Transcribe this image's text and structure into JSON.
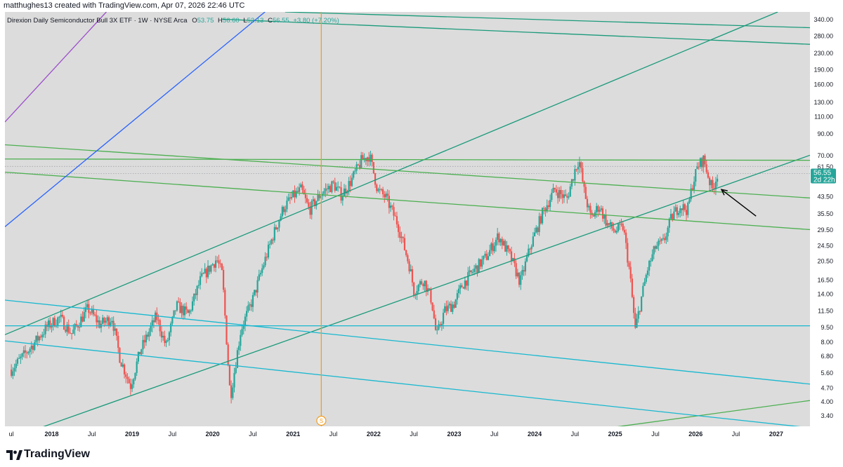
{
  "header": {
    "credit": "matthughes13 created with TradingView.com, Apr 07, 2026 22:46 UTC"
  },
  "symbol": {
    "name": "Direxion Daily Semiconductor Bull 3X ETF · 1W · NYSE Arca",
    "open_label": "O",
    "open": "53.75",
    "high_label": "H",
    "high": "56.60",
    "low_label": "L",
    "low": "52.13",
    "close_label": "C",
    "close": "56.55",
    "change": "+3.80 (+7.20%)"
  },
  "price_tag": {
    "price": "56.55",
    "countdown": "2d 22h"
  },
  "event_marker": "S",
  "footer": {
    "brand": "TradingView"
  },
  "colors": {
    "background": "#dcdcdc",
    "up": "#26a69a",
    "down": "#ef5350",
    "teal_line": "#199a7a",
    "green_line": "#4caf50",
    "cyan_line": "#17b8d0",
    "blue_line": "#2962ff",
    "purple_line": "#9c4dcc",
    "orange_line": "#f59d1b",
    "grid_dotted": "#9598a1",
    "text": "#131722"
  },
  "chart_data": {
    "type": "candlestick",
    "title": "Direxion Daily Semiconductor Bull 3X ETF · 1W · NYSE Arca",
    "y_scale": "log",
    "ylim": [
      3.0,
      370
    ],
    "xlim": [
      "2017-07",
      "2027-04"
    ],
    "y_ticks": [
      "340.00",
      "280.00",
      "230.00",
      "190.00",
      "160.00",
      "130.00",
      "110.00",
      "90.00",
      "70.00",
      "61.50",
      "56.55",
      "43.50",
      "35.50",
      "29.50",
      "24.50",
      "20.50",
      "16.50",
      "14.00",
      "11.50",
      "9.50",
      "8.00",
      "6.80",
      "5.60",
      "4.70",
      "4.00",
      "3.40"
    ],
    "x_ticks": [
      {
        "label": "ul",
        "t": 2017.5
      },
      {
        "label": "2018",
        "t": 2018.0
      },
      {
        "label": "Jul",
        "t": 2018.5
      },
      {
        "label": "2019",
        "t": 2019.0
      },
      {
        "label": "Jul",
        "t": 2019.5
      },
      {
        "label": "2020",
        "t": 2020.0
      },
      {
        "label": "Jul",
        "t": 2020.5
      },
      {
        "label": "2021",
        "t": 2021.0
      },
      {
        "label": "Jul",
        "t": 2021.5
      },
      {
        "label": "2022",
        "t": 2022.0
      },
      {
        "label": "Jul",
        "t": 2022.5
      },
      {
        "label": "2023",
        "t": 2023.0
      },
      {
        "label": "Jul",
        "t": 2023.5
      },
      {
        "label": "2024",
        "t": 2024.0
      },
      {
        "label": "Jul",
        "t": 2024.5
      },
      {
        "label": "2025",
        "t": 2025.0
      },
      {
        "label": "Jul",
        "t": 2025.5
      },
      {
        "label": "2026",
        "t": 2026.0
      },
      {
        "label": "Jul",
        "t": 2026.5
      },
      {
        "label": "2027",
        "t": 2027.0
      }
    ],
    "price_path": [
      [
        2017.5,
        5.8
      ],
      [
        2017.75,
        7.6
      ],
      [
        2017.95,
        9.6
      ],
      [
        2018.1,
        10.6
      ],
      [
        2018.25,
        8.8
      ],
      [
        2018.45,
        11.8
      ],
      [
        2018.6,
        9.8
      ],
      [
        2018.75,
        10.6
      ],
      [
        2018.85,
        6.6
      ],
      [
        2018.98,
        4.8
      ],
      [
        2019.1,
        7.2
      ],
      [
        2019.3,
        10.8
      ],
      [
        2019.42,
        7.6
      ],
      [
        2019.55,
        12.2
      ],
      [
        2019.7,
        11.0
      ],
      [
        2019.85,
        16.5
      ],
      [
        2020.05,
        21.0
      ],
      [
        2020.12,
        17.5
      ],
      [
        2020.22,
        4.2
      ],
      [
        2020.35,
        9.2
      ],
      [
        2020.5,
        13.2
      ],
      [
        2020.62,
        19.0
      ],
      [
        2020.75,
        27.5
      ],
      [
        2020.88,
        38.0
      ],
      [
        2021.0,
        43.5
      ],
      [
        2021.1,
        47.0
      ],
      [
        2021.2,
        37.0
      ],
      [
        2021.35,
        45.0
      ],
      [
        2021.5,
        50.0
      ],
      [
        2021.6,
        44.0
      ],
      [
        2021.72,
        52.0
      ],
      [
        2021.85,
        66.0
      ],
      [
        2021.95,
        70.0
      ],
      [
        2022.05,
        46.5
      ],
      [
        2022.15,
        43.0
      ],
      [
        2022.3,
        31.5
      ],
      [
        2022.45,
        19.0
      ],
      [
        2022.5,
        14.5
      ],
      [
        2022.62,
        16.5
      ],
      [
        2022.72,
        13.0
      ],
      [
        2022.78,
        8.5
      ],
      [
        2022.88,
        11.5
      ],
      [
        2023.0,
        12.5
      ],
      [
        2023.1,
        15.5
      ],
      [
        2023.25,
        18.5
      ],
      [
        2023.4,
        21.5
      ],
      [
        2023.55,
        27.5
      ],
      [
        2023.7,
        21.5
      ],
      [
        2023.82,
        16.0
      ],
      [
        2023.95,
        24.5
      ],
      [
        2024.1,
        36.0
      ],
      [
        2024.25,
        47.0
      ],
      [
        2024.4,
        42.0
      ],
      [
        2024.5,
        59.0
      ],
      [
        2024.55,
        67.0
      ],
      [
        2024.62,
        45.0
      ],
      [
        2024.7,
        33.5
      ],
      [
        2024.8,
        39.0
      ],
      [
        2024.9,
        31.5
      ],
      [
        2025.0,
        29.0
      ],
      [
        2025.1,
        30.5
      ],
      [
        2025.18,
        18.0
      ],
      [
        2025.25,
        9.2
      ],
      [
        2025.32,
        13.0
      ],
      [
        2025.4,
        18.5
      ],
      [
        2025.5,
        24.0
      ],
      [
        2025.6,
        25.5
      ],
      [
        2025.7,
        34.0
      ],
      [
        2025.8,
        39.0
      ],
      [
        2025.9,
        37.0
      ],
      [
        2025.96,
        50.0
      ],
      [
        2026.03,
        62.0
      ],
      [
        2026.1,
        67.0
      ],
      [
        2026.17,
        52.0
      ],
      [
        2026.21,
        47.0
      ],
      [
        2026.27,
        56.55
      ]
    ],
    "trendlines": [
      {
        "name": "teal-rising-upper",
        "color": "teal",
        "points": [
          [
            2017.42,
            8.7
          ],
          [
            2027.02,
            370
          ]
        ]
      },
      {
        "name": "teal-rising-lower",
        "color": "teal",
        "points": [
          [
            2017.42,
            2.55
          ],
          [
            2027.42,
            70
          ]
        ]
      },
      {
        "name": "teal-top-channel",
        "color": "teal",
        "points": [
          [
            2020.9,
            370
          ],
          [
            2027.42,
            308
          ]
        ]
      },
      {
        "name": "teal-top-channel-2",
        "color": "teal",
        "points": [
          [
            2020.12,
            340
          ],
          [
            2027.42,
            254
          ]
        ]
      },
      {
        "name": "green-horizontal",
        "color": "green",
        "points": [
          [
            2017.42,
            67
          ],
          [
            2027.42,
            66
          ]
        ]
      },
      {
        "name": "green-descending-1",
        "color": "green",
        "points": [
          [
            2017.42,
            79
          ],
          [
            2027.42,
            42.6
          ]
        ]
      },
      {
        "name": "green-descending-2",
        "color": "green",
        "points": [
          [
            2017.42,
            57.5
          ],
          [
            2027.42,
            29.5
          ]
        ]
      },
      {
        "name": "green-rising-bottom",
        "color": "green",
        "points": [
          [
            2024.8,
            2.9
          ],
          [
            2027.42,
            4.05
          ]
        ]
      },
      {
        "name": "cyan-horizontal",
        "color": "cyan",
        "points": [
          [
            2017.42,
            9.65
          ],
          [
            2027.42,
            9.65
          ]
        ]
      },
      {
        "name": "cyan-descending-1",
        "color": "cyan",
        "points": [
          [
            2017.42,
            13.0
          ],
          [
            2027.42,
            4.9
          ]
        ]
      },
      {
        "name": "cyan-descending-2",
        "color": "cyan",
        "points": [
          [
            2017.42,
            8.1
          ],
          [
            2027.42,
            2.95
          ]
        ]
      },
      {
        "name": "blue-rising",
        "color": "blue",
        "points": [
          [
            2017.42,
            30.5
          ],
          [
            2020.65,
            370
          ]
        ]
      },
      {
        "name": "purple-rising",
        "color": "purple",
        "points": [
          [
            2017.42,
            103
          ],
          [
            2018.68,
            370
          ]
        ]
      },
      {
        "name": "orange-vertical",
        "color": "orange",
        "points": [
          [
            2021.35,
            370
          ],
          [
            2021.35,
            3.0
          ]
        ]
      }
    ],
    "dotted_levels": [
      61.5,
      56.55
    ],
    "annotation": {
      "type": "arrow",
      "from": [
        2026.75,
        34.5
      ],
      "to": [
        2026.32,
        47.0
      ]
    }
  }
}
